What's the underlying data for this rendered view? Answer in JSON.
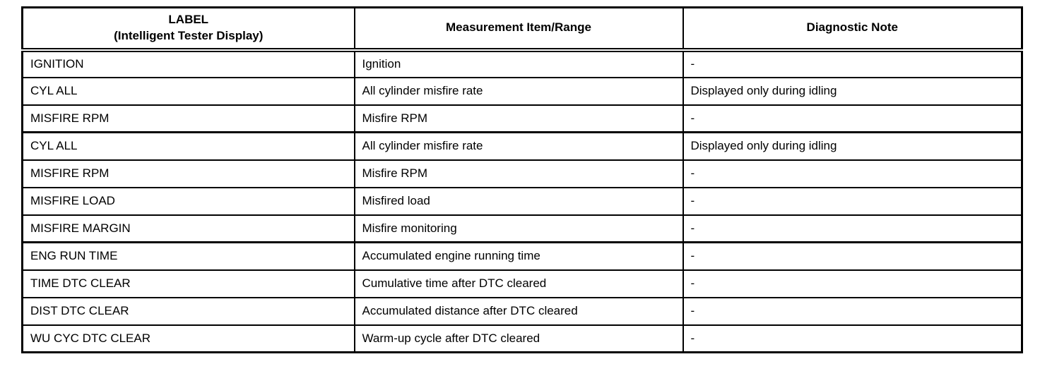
{
  "colors": {
    "border": "#000000",
    "background": "#ffffff",
    "text": "#000000"
  },
  "table": {
    "headers": [
      {
        "line1": "LABEL",
        "line2": "(Intelligent Tester Display)"
      },
      {
        "line1": "Measurement Item/Range"
      },
      {
        "line1": "Diagnostic Note"
      }
    ],
    "rows": [
      {
        "label": "IGNITION",
        "measurement": "Ignition",
        "note": "-"
      },
      {
        "label": "CYL ALL",
        "measurement": "All cylinder misfire rate",
        "note": "Displayed only during idling"
      },
      {
        "label": "MISFIRE RPM",
        "measurement": "Misfire RPM",
        "note": "-"
      },
      {
        "label": "CYL ALL",
        "measurement": "All cylinder misfire rate",
        "note": "Displayed only during idling"
      },
      {
        "label": "MISFIRE RPM",
        "measurement": "Misfire RPM",
        "note": "-"
      },
      {
        "label": "MISFIRE LOAD",
        "measurement": "Misfired load",
        "note": "-"
      },
      {
        "label": "MISFIRE MARGIN",
        "measurement": "Misfire monitoring",
        "note": "-"
      },
      {
        "label": "ENG RUN TIME",
        "measurement": "Accumulated engine running time",
        "note": "-"
      },
      {
        "label": "TIME DTC CLEAR",
        "measurement": "Cumulative time after DTC cleared",
        "note": "-"
      },
      {
        "label": "DIST DTC CLEAR",
        "measurement": "Accumulated distance after DTC cleared",
        "note": "-"
      },
      {
        "label": "WU CYC DTC CLEAR",
        "measurement": "Warm-up cycle after DTC cleared",
        "note": "-"
      }
    ]
  }
}
